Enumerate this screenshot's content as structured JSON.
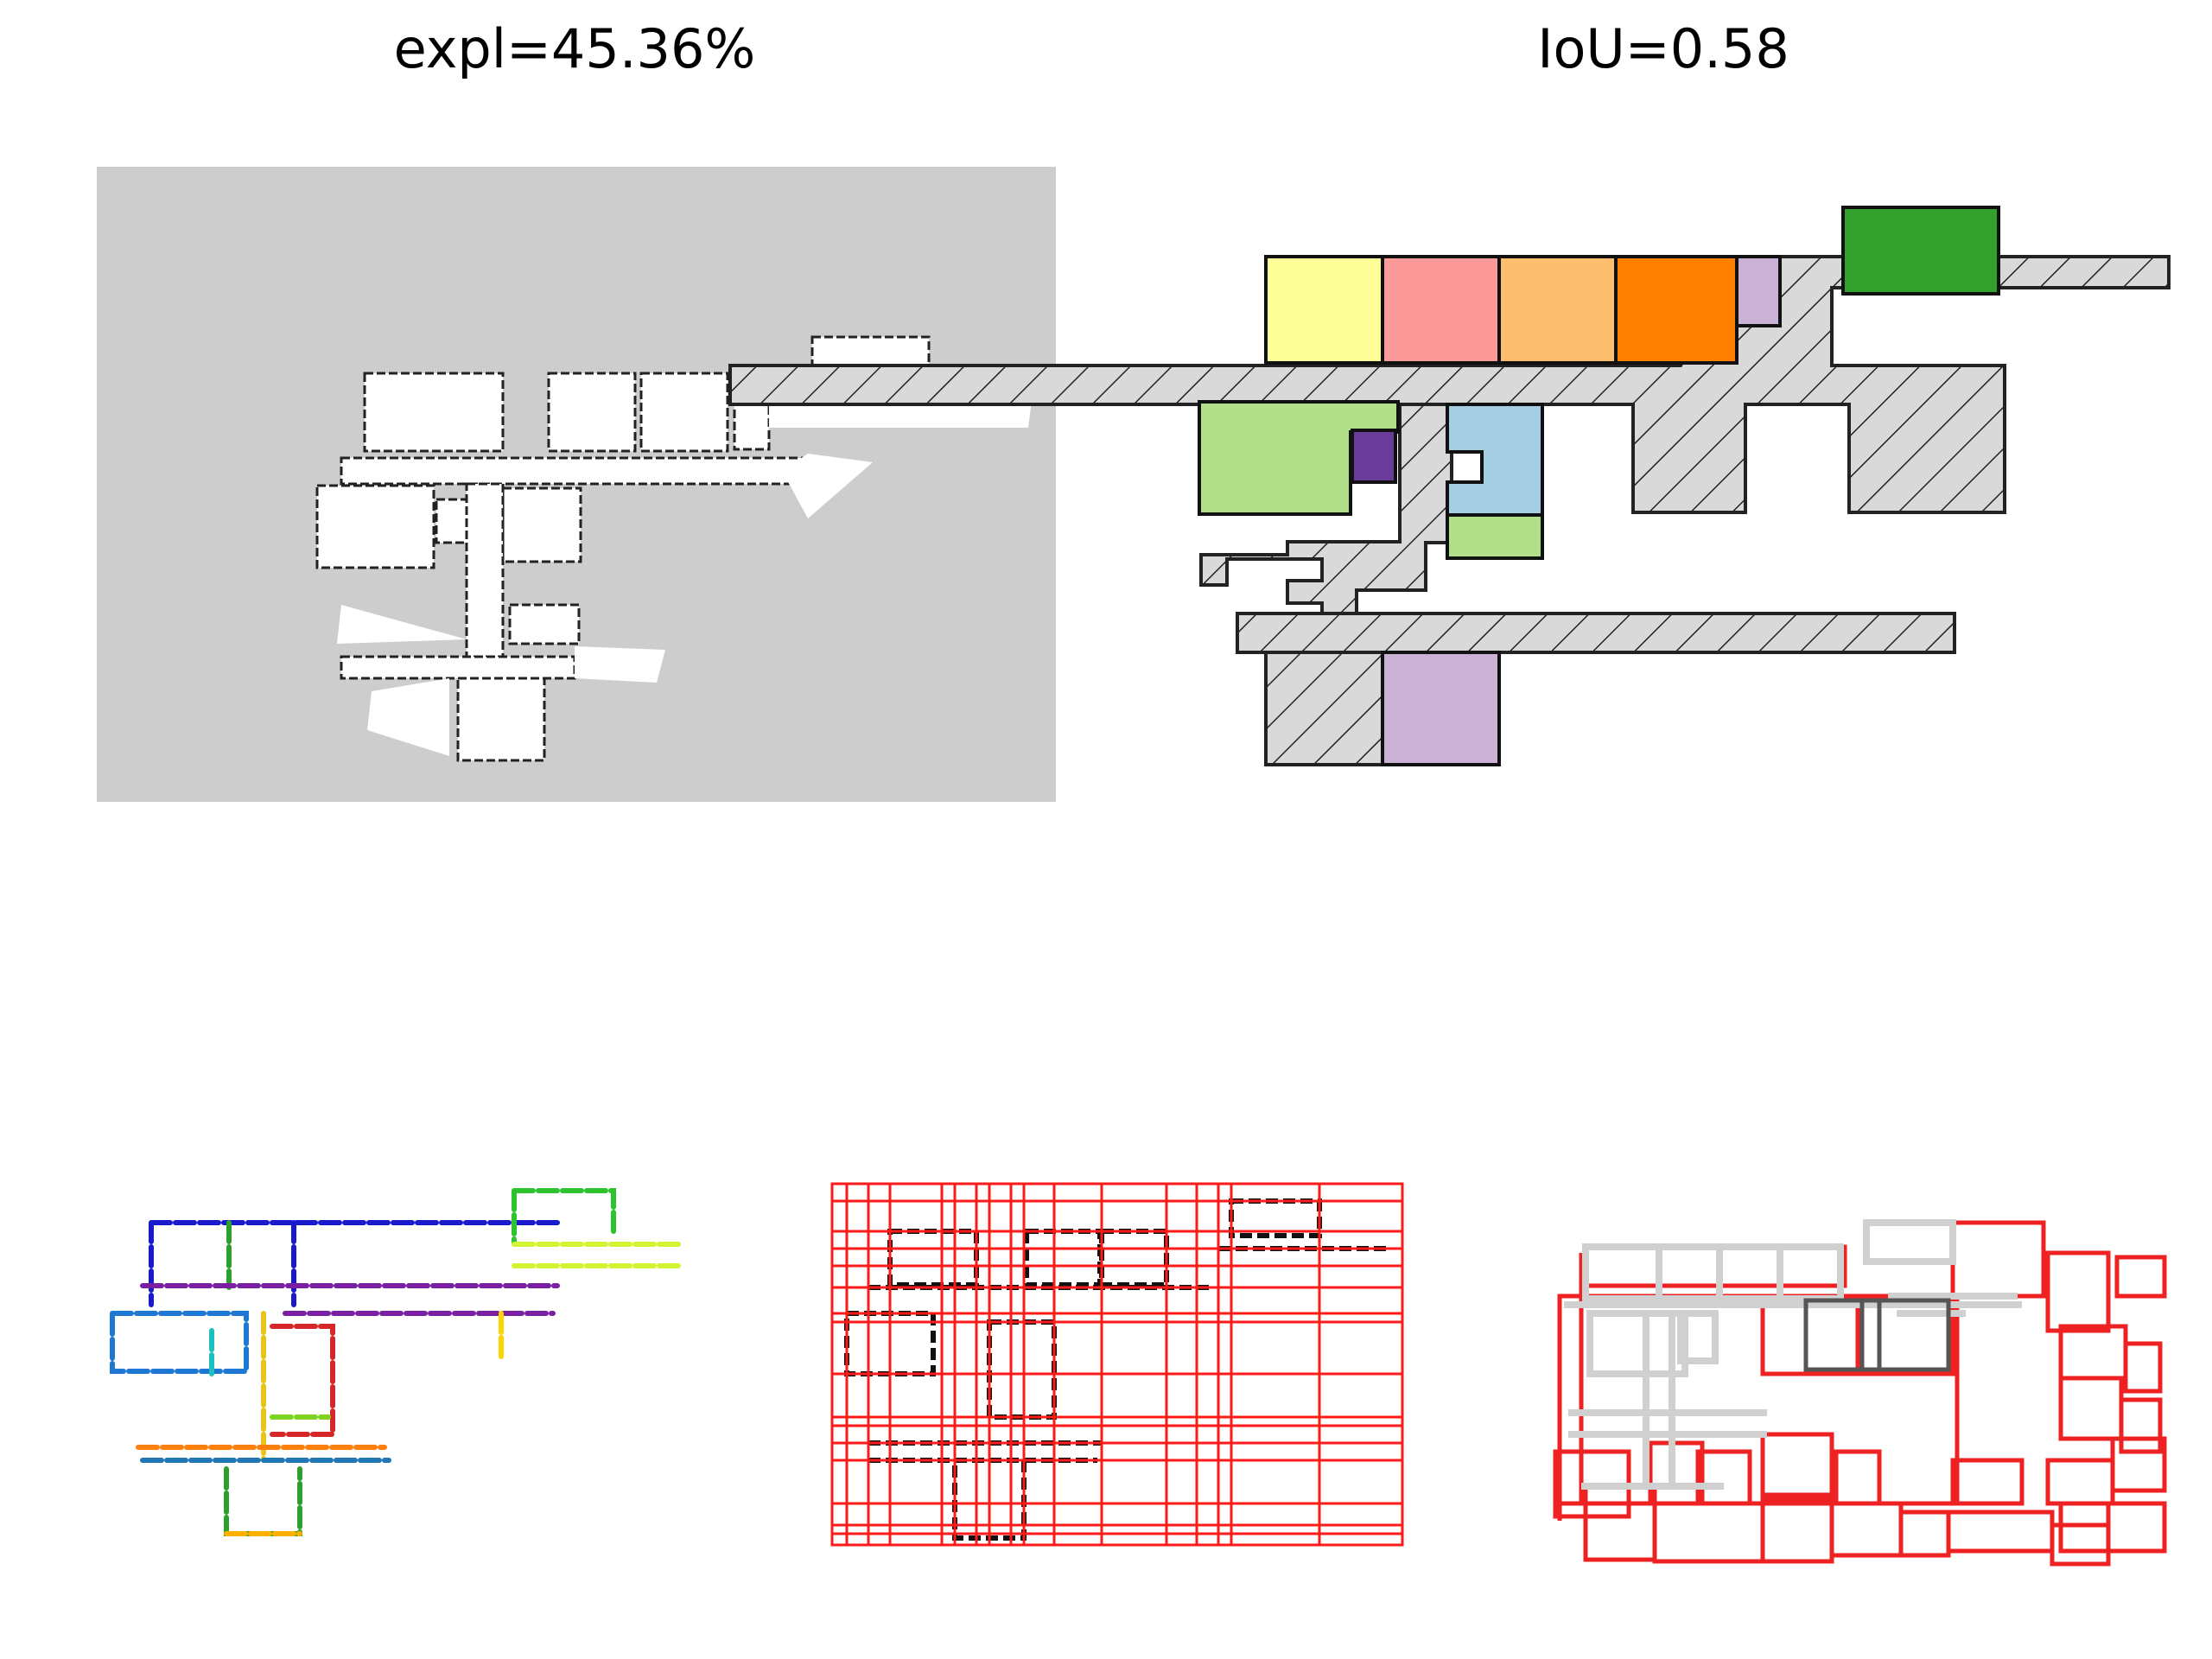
{
  "titles": {
    "exploration": "expl=45.36%",
    "iou": "IoU=0.58"
  },
  "colors": {
    "unknown": "#cdcdcd",
    "free": "#ffffff",
    "wall": "#000000",
    "grid": "#ff0000",
    "corridor_fill": "#d9d9d9",
    "room_palette": [
      "#ffff99",
      "#fb9a99",
      "#fdbf6f",
      "#ff7f00",
      "#cab2d6",
      "#33a02c",
      "#b2df8a",
      "#6a3d9a",
      "#a6cee3",
      "#b2df8a",
      "#cab2d6"
    ]
  },
  "panels": [
    {
      "name": "occupancy-map"
    },
    {
      "name": "room-segmentation"
    },
    {
      "name": "wall-clusters"
    },
    {
      "name": "grid-decomposition"
    },
    {
      "name": "polygon-overlay"
    }
  ]
}
